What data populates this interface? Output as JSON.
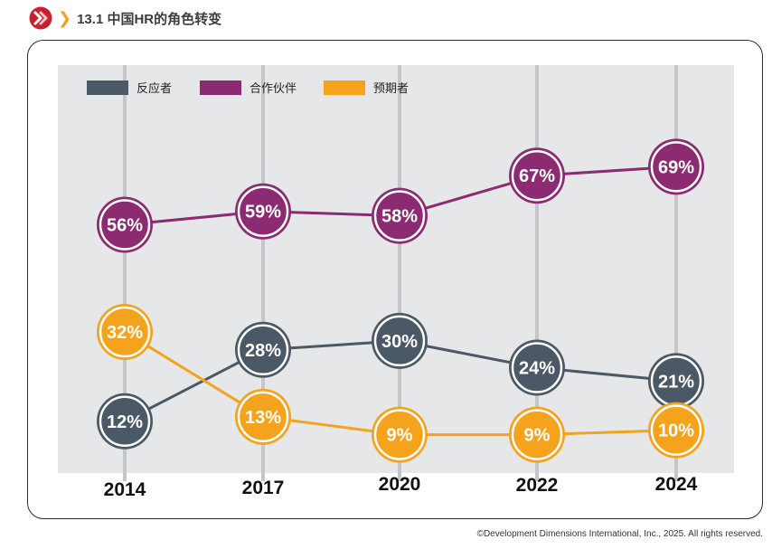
{
  "header": {
    "title": "13.1 中国HR的角色转变",
    "icon": "ddi-logo-icon",
    "chevron": "chevron-right-icon",
    "accent": "#f5a21c",
    "logo_color": "#c8202f"
  },
  "footer": {
    "copyright": "©Development Dimensions International, Inc., 2025. All rights reserved."
  },
  "chart_data": {
    "type": "line",
    "title": "",
    "xlabel": "",
    "ylabel": "",
    "categories": [
      "2014",
      "2017",
      "2020",
      "2022",
      "2024"
    ],
    "ylim": [
      0,
      80
    ],
    "legend_position": "top-left",
    "series": [
      {
        "name": "反应者",
        "color": "#4b5866",
        "values": [
          12,
          28,
          30,
          24,
          21
        ],
        "labels": [
          "12%",
          "28%",
          "30%",
          "24%",
          "21%"
        ]
      },
      {
        "name": "合作伙伴",
        "color": "#8c2a72",
        "values": [
          56,
          59,
          58,
          67,
          69
        ],
        "labels": [
          "56%",
          "59%",
          "58%",
          "67%",
          "69%"
        ]
      },
      {
        "name": "预期者",
        "color": "#f5a21c",
        "values": [
          32,
          13,
          9,
          9,
          10
        ],
        "labels": [
          "32%",
          "13%",
          "9%",
          "9%",
          "10%"
        ]
      }
    ]
  }
}
